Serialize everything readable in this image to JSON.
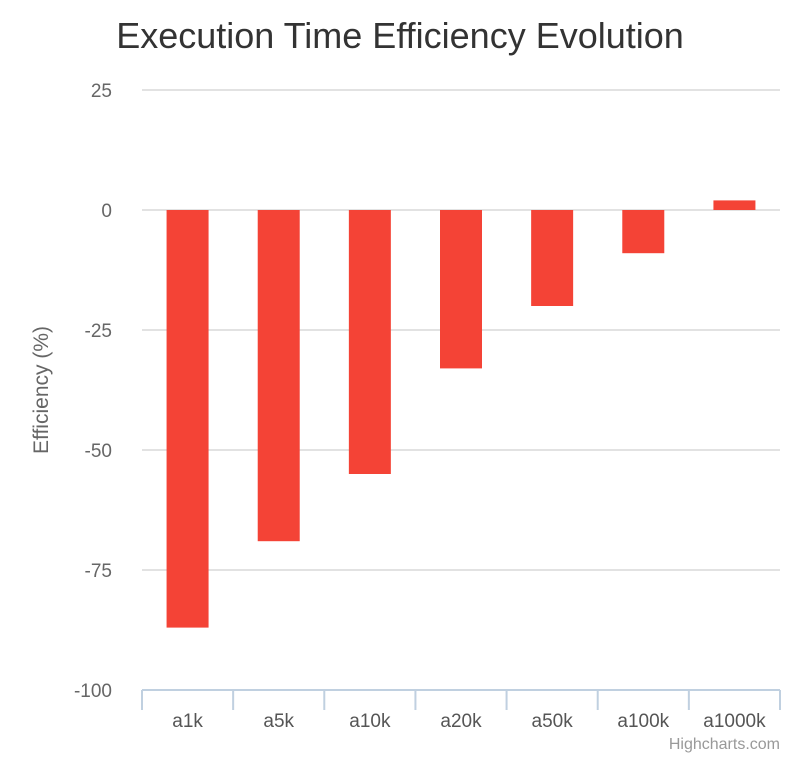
{
  "chart_data": {
    "type": "bar",
    "title": "Execution Time Efficiency Evolution",
    "ylabel": "Efficiency (%)",
    "xlabel": "",
    "categories": [
      "a1k",
      "a5k",
      "a10k",
      "a20k",
      "a50k",
      "a100k",
      "a1000k"
    ],
    "series": [
      {
        "values": [
          -87,
          -69,
          -55,
          -33,
          -20,
          -9,
          2
        ]
      }
    ],
    "ylim": [
      -100,
      25
    ],
    "yticks": [
      25,
      0,
      -25,
      -50,
      -75,
      -100
    ],
    "grid": true,
    "legend": "none",
    "bar_color": "#f44336",
    "credits": "Highcharts.com"
  }
}
